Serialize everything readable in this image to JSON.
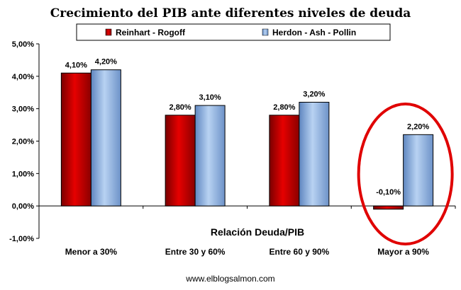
{
  "chart_data": {
    "type": "bar",
    "title": "Crecimiento del PIB ante diferentes niveles de deuda",
    "xlabel": "Relación Deuda/PIB",
    "ylabel": "",
    "categories": [
      "Menor a 30%",
      "Entre 30 y 60%",
      "Entre 60 y 90%",
      "Mayor a 90%"
    ],
    "series": [
      {
        "name": "Reinhart - Rogoff",
        "values": [
          4.1,
          2.8,
          2.8,
          -0.1
        ],
        "labels": [
          "4,10%",
          "2,80%",
          "2,80%",
          "-0,10%"
        ],
        "color": "#cc0000"
      },
      {
        "name": "Herdon - Ash - Pollin",
        "values": [
          4.2,
          3.1,
          3.2,
          2.2
        ],
        "labels": [
          "4,20%",
          "3,10%",
          "3,20%",
          "2,20%"
        ],
        "color": "#8fb4e3"
      }
    ],
    "ylim": [
      -1,
      5
    ],
    "yticks": [
      5,
      4,
      3,
      2,
      1,
      0,
      -1
    ],
    "ytick_labels": [
      "5,00%",
      "4,00%",
      "3,00%",
      "2,00%",
      "1,00%",
      "0,00%",
      "-1,00%"
    ],
    "grid": false,
    "legend_position": "top",
    "highlight_color": "#e00000",
    "footer": "www.elblogsalmon.com"
  }
}
